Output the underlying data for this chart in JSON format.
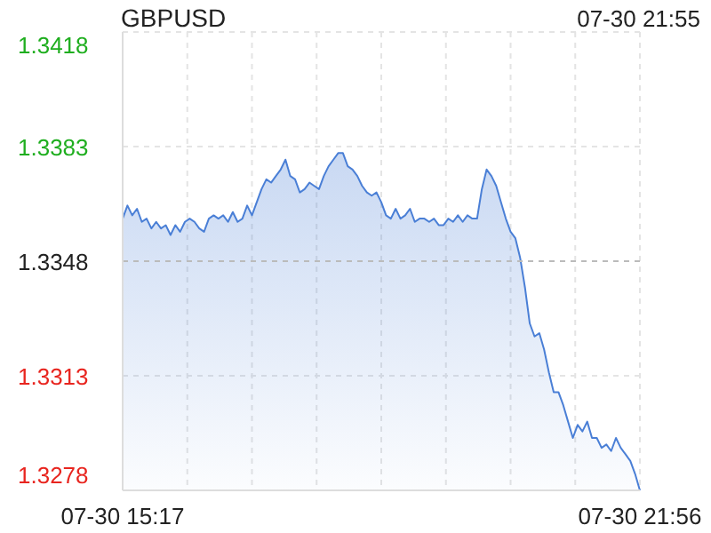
{
  "chart_data": {
    "type": "area",
    "title": "GBPUSD",
    "annotations": [
      "07-30 21:55"
    ],
    "categories": [
      "07-30 15:17",
      null,
      null,
      null,
      null,
      null,
      null,
      null,
      null,
      null,
      null,
      null,
      null,
      null,
      null,
      null,
      null,
      null,
      null,
      null,
      null,
      null,
      null,
      null,
      null,
      null,
      null,
      null,
      null,
      null,
      null,
      null,
      null,
      null,
      null,
      null,
      null,
      null,
      null,
      null,
      null,
      null,
      null,
      null,
      null,
      null,
      null,
      null,
      null,
      null,
      null,
      null,
      null,
      null,
      null,
      null,
      null,
      null,
      null,
      null,
      null,
      null,
      null,
      null,
      null,
      null,
      null,
      null,
      null,
      null,
      null,
      null,
      null,
      null,
      null,
      null,
      null,
      null,
      null,
      null,
      null,
      null,
      null,
      null,
      null,
      null,
      null,
      null,
      null,
      null,
      null,
      null,
      null,
      null,
      null,
      null,
      null,
      null,
      null,
      null,
      null,
      null,
      null,
      null,
      null,
      null,
      null,
      null,
      "07-30 21:56"
    ],
    "series": [
      {
        "color": "#4a7fd6",
        "values": [
          1.3361,
          1.3365,
          1.3362,
          1.3364,
          1.336,
          1.3361,
          1.3358,
          1.336,
          1.3358,
          1.3359,
          1.3356,
          1.3359,
          1.3357,
          1.336,
          1.3361,
          1.336,
          1.3358,
          1.3357,
          1.3361,
          1.3362,
          1.3361,
          1.3362,
          1.336,
          1.3363,
          1.336,
          1.3361,
          1.3365,
          1.3362,
          1.3366,
          1.337,
          1.3373,
          1.3372,
          1.3374,
          1.3376,
          1.3379,
          1.3374,
          1.3373,
          1.3369,
          1.337,
          1.3372,
          1.3371,
          1.337,
          1.3374,
          1.3377,
          1.3379,
          1.3381,
          1.3381,
          1.3377,
          1.3376,
          1.3374,
          1.3371,
          1.3369,
          1.3368,
          1.3369,
          1.3366,
          1.3362,
          1.3361,
          1.3364,
          1.3361,
          1.3362,
          1.3364,
          1.336,
          1.3361,
          1.3361,
          1.336,
          1.3361,
          1.3359,
          1.3359,
          1.3361,
          1.336,
          1.3362,
          1.336,
          1.3362,
          1.3361,
          1.3361,
          1.337,
          1.3376,
          1.3374,
          1.3371,
          1.3366,
          1.3361,
          1.3357,
          1.3355,
          1.3349,
          1.334,
          1.3329,
          1.3325,
          1.3326,
          1.3321,
          1.3314,
          1.3308,
          1.3308,
          1.3304,
          1.3299,
          1.3294,
          1.3298,
          1.3296,
          1.3299,
          1.3294,
          1.3294,
          1.3291,
          1.3292,
          1.329,
          1.3294,
          1.3291,
          1.3289,
          1.3287,
          1.3283,
          1.3278
        ]
      }
    ],
    "ylim": [
      1.3278,
      1.3418
    ],
    "yticks": [
      1.3278,
      1.3313,
      1.3348,
      1.3383,
      1.3418
    ],
    "ref_lines": [
      {
        "axis": "y",
        "value": 1.3348,
        "color": "#bbbbbb",
        "line_style": "dashed"
      }
    ],
    "grid": true
  }
}
